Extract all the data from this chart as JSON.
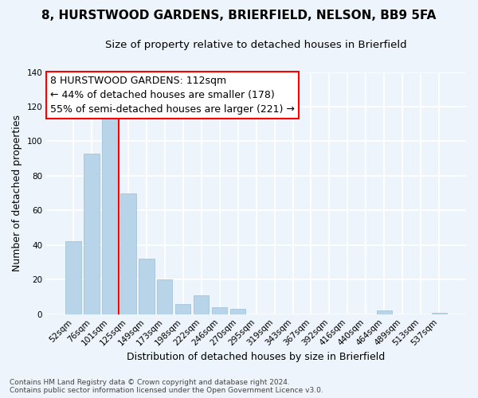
{
  "title": "8, HURSTWOOD GARDENS, BRIERFIELD, NELSON, BB9 5FA",
  "subtitle": "Size of property relative to detached houses in Brierfield",
  "xlabel": "Distribution of detached houses by size in Brierfield",
  "ylabel": "Number of detached properties",
  "bar_labels": [
    "52sqm",
    "76sqm",
    "101sqm",
    "125sqm",
    "149sqm",
    "173sqm",
    "198sqm",
    "222sqm",
    "246sqm",
    "270sqm",
    "295sqm",
    "319sqm",
    "343sqm",
    "367sqm",
    "392sqm",
    "416sqm",
    "440sqm",
    "464sqm",
    "489sqm",
    "513sqm",
    "537sqm"
  ],
  "bar_values": [
    42,
    93,
    117,
    70,
    32,
    20,
    6,
    11,
    4,
    3,
    0,
    0,
    0,
    0,
    0,
    0,
    0,
    2,
    0,
    0,
    1
  ],
  "bar_color": "#b8d4e8",
  "bar_edge_color": "#9abdd6",
  "vline_color": "red",
  "vline_index": 2,
  "ylim": [
    0,
    140
  ],
  "yticks": [
    0,
    20,
    40,
    60,
    80,
    100,
    120,
    140
  ],
  "annotation_text_line1": "8 HURSTWOOD GARDENS: 112sqm",
  "annotation_text_line2": "← 44% of detached houses are smaller (178)",
  "annotation_text_line3": "55% of semi-detached houses are larger (221) →",
  "footer_line1": "Contains HM Land Registry data © Crown copyright and database right 2024.",
  "footer_line2": "Contains public sector information licensed under the Open Government Licence v3.0.",
  "bg_color": "#eef4fb",
  "grid_color": "#ffffff",
  "title_fontsize": 11,
  "subtitle_fontsize": 9.5,
  "annotation_fontsize": 9,
  "ylabel_fontsize": 9,
  "xlabel_fontsize": 9,
  "footer_fontsize": 6.5
}
